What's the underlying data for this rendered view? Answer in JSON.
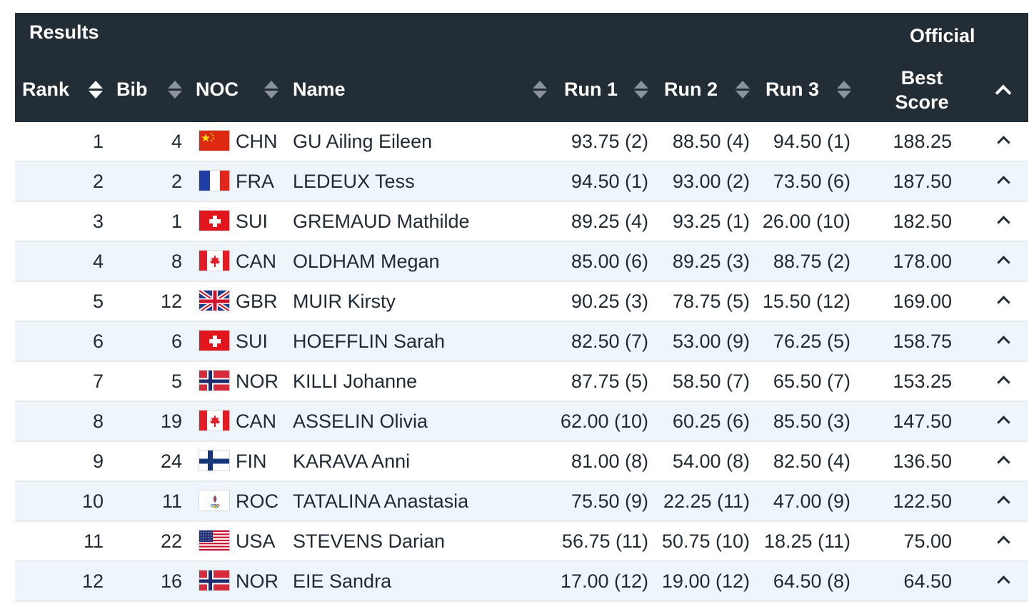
{
  "header": {
    "title": "Results",
    "official_label": "Official",
    "best_score_line1": "Best",
    "best_score_line2": "Score",
    "columns": {
      "rank": "Rank",
      "bib": "Bib",
      "noc": "NOC",
      "name": "Name",
      "run1": "Run 1",
      "run2": "Run 2",
      "run3": "Run 3"
    },
    "sort_icon": "sort-arrows-icon",
    "collapse_icon": "chevron-up-icon"
  },
  "colors": {
    "header_bg": "#222d36",
    "alt_row_bg": "#eef6fb",
    "text": "#1f2a35"
  },
  "rows": [
    {
      "rank": "1",
      "bib": "4",
      "flag": "china-flag-icon",
      "noc": "CHN",
      "name": "GU Ailing Eileen",
      "run1": "93.75 (2)",
      "run2": "88.50 (4)",
      "run3": "94.50 (1)",
      "score": "188.25"
    },
    {
      "rank": "2",
      "bib": "2",
      "flag": "france-flag-icon",
      "noc": "FRA",
      "name": "LEDEUX Tess",
      "run1": "94.50 (1)",
      "run2": "93.00 (2)",
      "run3": "73.50 (6)",
      "score": "187.50"
    },
    {
      "rank": "3",
      "bib": "1",
      "flag": "switzerland-flag-icon",
      "noc": "SUI",
      "name": "GREMAUD Mathilde",
      "run1": "89.25 (4)",
      "run2": "93.25 (1)",
      "run3": "26.00 (10)",
      "score": "182.50"
    },
    {
      "rank": "4",
      "bib": "8",
      "flag": "canada-flag-icon",
      "noc": "CAN",
      "name": "OLDHAM Megan",
      "run1": "85.00 (6)",
      "run2": "89.25 (3)",
      "run3": "88.75 (2)",
      "score": "178.00"
    },
    {
      "rank": "5",
      "bib": "12",
      "flag": "uk-flag-icon",
      "noc": "GBR",
      "name": "MUIR Kirsty",
      "run1": "90.25 (3)",
      "run2": "78.75 (5)",
      "run3": "15.50 (12)",
      "score": "169.00"
    },
    {
      "rank": "6",
      "bib": "6",
      "flag": "switzerland-flag-icon",
      "noc": "SUI",
      "name": "HOEFFLIN Sarah",
      "run1": "82.50 (7)",
      "run2": "53.00 (9)",
      "run3": "76.25 (5)",
      "score": "158.75"
    },
    {
      "rank": "7",
      "bib": "5",
      "flag": "norway-flag-icon",
      "noc": "NOR",
      "name": "KILLI Johanne",
      "run1": "87.75 (5)",
      "run2": "58.50 (7)",
      "run3": "65.50 (7)",
      "score": "153.25"
    },
    {
      "rank": "8",
      "bib": "19",
      "flag": "canada-flag-icon",
      "noc": "CAN",
      "name": "ASSELIN Olivia",
      "run1": "62.00 (10)",
      "run2": "60.25 (6)",
      "run3": "85.50 (3)",
      "score": "147.50"
    },
    {
      "rank": "9",
      "bib": "24",
      "flag": "finland-flag-icon",
      "noc": "FIN",
      "name": "KARAVA Anni",
      "run1": "81.00 (8)",
      "run2": "54.00 (8)",
      "run3": "82.50 (4)",
      "score": "136.50"
    },
    {
      "rank": "10",
      "bib": "11",
      "flag": "roc-flag-icon",
      "noc": "ROC",
      "name": "TATALINA Anastasia",
      "run1": "75.50 (9)",
      "run2": "22.25 (11)",
      "run3": "47.00 (9)",
      "score": "122.50"
    },
    {
      "rank": "11",
      "bib": "22",
      "flag": "usa-flag-icon",
      "noc": "USA",
      "name": "STEVENS Darian",
      "run1": "56.75 (11)",
      "run2": "50.75 (10)",
      "run3": "18.25 (11)",
      "score": "75.00"
    },
    {
      "rank": "12",
      "bib": "16",
      "flag": "norway-flag-icon",
      "noc": "NOR",
      "name": "EIE Sandra",
      "run1": "17.00 (12)",
      "run2": "19.00 (12)",
      "run3": "64.50 (8)",
      "score": "64.50"
    }
  ]
}
